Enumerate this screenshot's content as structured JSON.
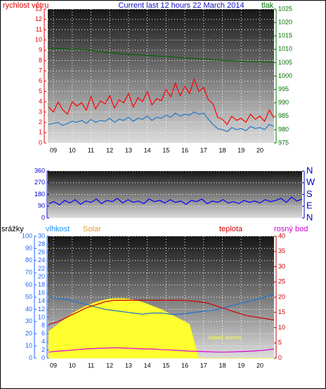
{
  "chart_data": [
    {
      "type": "line",
      "title": "Current last 12 hours 22 March 2014",
      "ylabel": "rychlost větru",
      "y2label": "tlak",
      "ycolor": "#e00000",
      "y2color": "#007000",
      "x": [
        8.75,
        9,
        9.25,
        9.5,
        9.75,
        10,
        10.25,
        10.5,
        10.75,
        11,
        11.25,
        11.5,
        11.75,
        12,
        12.25,
        12.5,
        12.75,
        13,
        13.25,
        13.5,
        13.75,
        14,
        14.25,
        14.5,
        14.75,
        15,
        15.25,
        15.5,
        15.75,
        16,
        16.25,
        16.5,
        16.75,
        17,
        17.25,
        17.5,
        17.75,
        18,
        18.25,
        18.5,
        18.75,
        19,
        19.25,
        19.5,
        19.75,
        20,
        20.25,
        20.5,
        20.75
      ],
      "xlim": [
        8.7,
        20.75
      ],
      "xticks": [
        {
          "value": 9,
          "label": "09"
        },
        10,
        11,
        12,
        13,
        14,
        15,
        16,
        17,
        18,
        19,
        20
      ],
      "ylim": [
        0,
        13
      ],
      "yticks": [
        0,
        1,
        2,
        3,
        4,
        5,
        6,
        7,
        8,
        9,
        10,
        11,
        12,
        13
      ],
      "y2lim": [
        975,
        1025
      ],
      "y2ticks": [
        975,
        980,
        985,
        990,
        995,
        1000,
        1005,
        1010,
        1015,
        1020,
        1025
      ],
      "grid": true,
      "series": [
        {
          "color": "#ff0000",
          "values": [
            3.5,
            3,
            4,
            3.2,
            2.8,
            4,
            3.6,
            3.9,
            3.2,
            4.5,
            3.3,
            4.1,
            3.8,
            4.6,
            3.4,
            4.2,
            3.9,
            4.8,
            3.5,
            4.4,
            4,
            5,
            3.7,
            4.3,
            4.1,
            5.2,
            4.5,
            5.8,
            4.6,
            5.5,
            4.8,
            6.2,
            5,
            5.4,
            4.2,
            3.8,
            2.5,
            2.3,
            1.8,
            2.6,
            2.2,
            2.4,
            2,
            2.8,
            2.3,
            2.6,
            2.1,
            3.2,
            2.4
          ]
        },
        {
          "color": "#1e78c8",
          "values": [
            1.8,
            1.9,
            2,
            1.7,
            1.9,
            2.1,
            2,
            2.2,
            1.9,
            2.3,
            2,
            2.2,
            2.1,
            2.4,
            2,
            2.3,
            2.2,
            2.5,
            2.1,
            2.4,
            2.3,
            2.6,
            2.2,
            2.5,
            2.4,
            2.7,
            2.5,
            2.9,
            2.6,
            2.8,
            2.7,
            3,
            2.8,
            2.9,
            2.3,
            1.8,
            1.4,
            1.3,
            1.1,
            1.5,
            1.3,
            1.4,
            1.2,
            1.6,
            1.4,
            1.5,
            1.3,
            1.8,
            1.6
          ]
        },
        {
          "color": "#006400",
          "axis": "y2",
          "values": [
            1010.3,
            1010.3,
            1010.2,
            1010.2,
            1010.1,
            1010,
            1010,
            1009.9,
            1009.8,
            1009.6,
            1009.4,
            1009.2,
            1009,
            1008.8,
            1008.6,
            1008.4,
            1008.2,
            1008.1,
            1008,
            1007.9,
            1007.8,
            1007.7,
            1007.6,
            1007.5,
            1007.4,
            1007.3,
            1007.2,
            1007,
            1006.9,
            1006.8,
            1006.7,
            1006.6,
            1006.5,
            1006.4,
            1006.3,
            1006.1,
            1006,
            1005.9,
            1005.8,
            1005.7,
            1005.6,
            1005.5,
            1005.5,
            1005.4,
            1005.4,
            1005.3,
            1005.3,
            1005.2,
            1005.2
          ]
        }
      ]
    },
    {
      "type": "line",
      "ycolor": "#0000c8",
      "y2color": "#0000c8",
      "x": [
        8.75,
        9,
        9.25,
        9.5,
        9.75,
        10,
        10.25,
        10.5,
        10.75,
        11,
        11.25,
        11.5,
        11.75,
        12,
        12.25,
        12.5,
        12.75,
        13,
        13.25,
        13.5,
        13.75,
        14,
        14.25,
        14.5,
        14.75,
        15,
        15.25,
        15.5,
        15.75,
        16,
        16.25,
        16.5,
        16.75,
        17,
        17.25,
        17.5,
        17.75,
        18,
        18.25,
        18.5,
        18.75,
        19,
        19.25,
        19.5,
        19.75,
        20,
        20.25,
        20.5,
        20.75
      ],
      "xlim": [
        8.7,
        20.75
      ],
      "ylim": [
        0,
        360
      ],
      "yticks": [
        0,
        90,
        180,
        270,
        360
      ],
      "y2lim": [
        0,
        360
      ],
      "y2ticks": [
        {
          "value": 0,
          "label": "N"
        },
        {
          "value": 90,
          "label": "E"
        },
        {
          "value": 180,
          "label": "S"
        },
        {
          "value": 270,
          "label": "W"
        },
        {
          "value": 360,
          "label": "N"
        }
      ],
      "grid": true,
      "series": [
        {
          "color": "#0000ff",
          "values": [
            110,
            125,
            100,
            135,
            115,
            140,
            105,
            130,
            120,
            145,
            110,
            135,
            125,
            150,
            115,
            140,
            120,
            130,
            110,
            145,
            125,
            135,
            115,
            140,
            120,
            130,
            105,
            135,
            125,
            145,
            110,
            130,
            120,
            140,
            115,
            125,
            110,
            135,
            120,
            130,
            115,
            140,
            125,
            135,
            150,
            120,
            160,
            130,
            145
          ]
        }
      ]
    },
    {
      "type": "line",
      "y3label": "srážky",
      "annotation": "západ slunce",
      "ycolor": "#1e64ff",
      "y2color": "#c00000",
      "y3color": "#1e64ff",
      "x": [
        8.75,
        9.25,
        9.75,
        10.25,
        10.75,
        11.25,
        11.75,
        12.25,
        12.75,
        13.25,
        13.75,
        14.25,
        14.75,
        15.25,
        15.75,
        16.25,
        16.75,
        17.25,
        17.75,
        18.25,
        18.75,
        19.25,
        19.75,
        20.25,
        20.75
      ],
      "xlim": [
        8.7,
        20.75
      ],
      "xticks": [
        {
          "value": 9,
          "label": "09"
        },
        10,
        11,
        12,
        13,
        14,
        15,
        16,
        17,
        18,
        19,
        20
      ],
      "ylim": [
        0,
        100
      ],
      "yticks": [
        0,
        10,
        20,
        30,
        40,
        50,
        60,
        70,
        80,
        90,
        100
      ],
      "y3lim": [
        0,
        30
      ],
      "y3ticks": [
        0,
        2,
        4,
        6,
        8,
        10,
        12,
        14,
        16,
        18,
        20,
        22,
        24,
        26,
        28,
        30
      ],
      "y2lim": [
        0,
        40
      ],
      "y2ticks": [
        0,
        5,
        10,
        15,
        20,
        25,
        30,
        35,
        40
      ],
      "grid": true,
      "series": [
        {
          "name": "Solar",
          "color": "#ffff30",
          "label_color": "#e89a30",
          "style": "area",
          "values": [
            22,
            28,
            34,
            39,
            43,
            46,
            48,
            49,
            49,
            48,
            46,
            43,
            40,
            36,
            32,
            28,
            0,
            0,
            0,
            0,
            0,
            0,
            0,
            0,
            0
          ]
        },
        {
          "name": "vlhkost",
          "color": "#1e78d0",
          "label_color": "#1e90ff",
          "values": [
            50,
            49,
            48,
            46,
            44,
            42,
            40,
            39,
            38,
            37,
            36,
            37,
            37,
            36,
            36,
            37,
            38,
            39,
            40,
            42,
            44,
            46,
            48,
            50,
            52
          ]
        },
        {
          "name": "teplota",
          "color": "#d00000",
          "label_color": "#d00000",
          "axis": "y2",
          "values": [
            11,
            12,
            13.5,
            15,
            16.5,
            17.5,
            18.5,
            19,
            19,
            19,
            19,
            19,
            19,
            19,
            19,
            18.8,
            18.5,
            18,
            17,
            16,
            15,
            14,
            13.5,
            13,
            12.5
          ]
        },
        {
          "name": "rosný bod",
          "color": "#e000e0",
          "label_color": "#d000d0",
          "axis": "y2",
          "values": [
            2,
            2.3,
            2.5,
            2.8,
            3,
            3.2,
            3.3,
            3.4,
            3.3,
            3.2,
            3,
            3,
            2.8,
            2.7,
            2.5,
            2.3,
            2.2,
            2.1,
            2,
            2,
            2.1,
            2.2,
            2.4,
            2.6,
            3
          ]
        }
      ]
    }
  ]
}
